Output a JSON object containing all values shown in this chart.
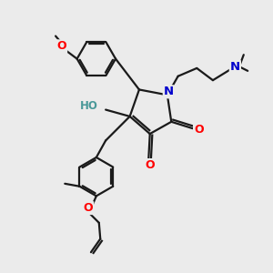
{
  "bg_color": "#ebebeb",
  "bond_color": "#1a1a1a",
  "bond_width": 1.6,
  "atom_colors": {
    "O": "#ff0000",
    "N": "#0000cc",
    "H": "#4a9999",
    "C": "#1a1a1a"
  },
  "figsize": [
    3.0,
    3.0
  ],
  "dpi": 100
}
